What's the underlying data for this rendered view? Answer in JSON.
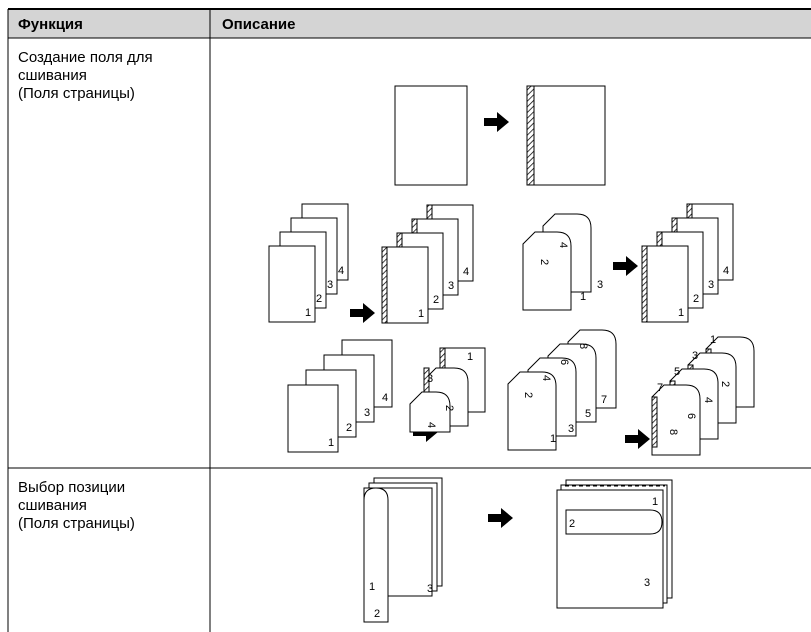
{
  "table": {
    "header": [
      "Функция",
      "Описание"
    ],
    "rows": [
      {
        "function": [
          "Создание поля для",
          "сшивания",
          "(Поля страницы)"
        ]
      },
      {
        "function": [
          "Выбор позиции",
          "сшивания",
          "(Поля страницы)"
        ]
      }
    ]
  },
  "figures": [
    {
      "labels": [
        "1",
        "2",
        "3",
        "4",
        "1",
        "2",
        "3",
        "4"
      ]
    },
    {
      "labels": [
        "2",
        "4",
        "1",
        "3",
        "1",
        "2",
        "3",
        "4"
      ]
    },
    {
      "labels": [
        "1",
        "2",
        "3",
        "4",
        "1",
        "3",
        "2",
        "4"
      ]
    },
    {
      "labels": [
        "2",
        "4",
        "6",
        "8",
        "1",
        "3",
        "5",
        "7",
        "1",
        "3",
        "5",
        "7",
        "2",
        "4",
        "6",
        "8"
      ]
    },
    {
      "labels": [
        "1",
        "2",
        "3",
        "2",
        "1",
        "3"
      ]
    }
  ]
}
